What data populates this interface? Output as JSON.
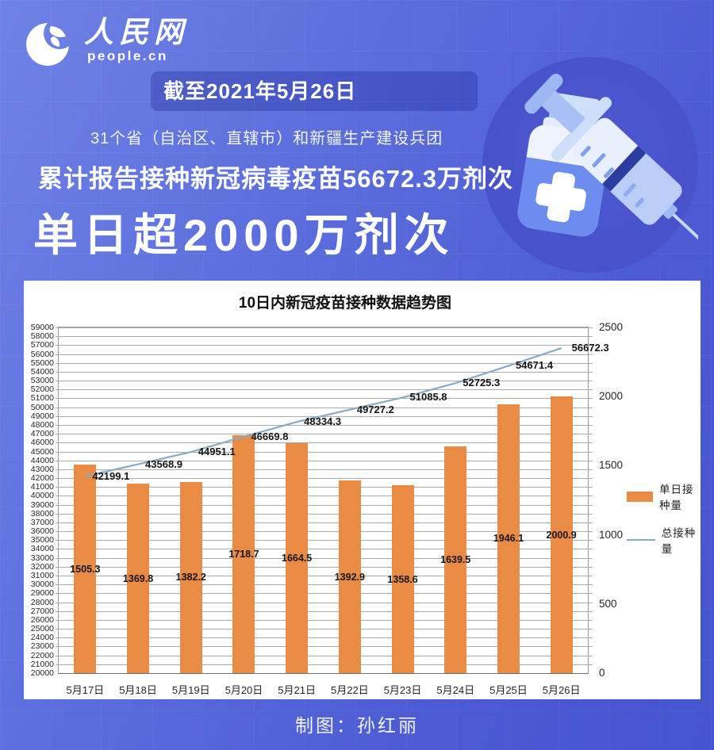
{
  "logo": {
    "name_cn": "人民网",
    "domain": "people.cn"
  },
  "banner": {
    "date_line": "截至2021年5月26日",
    "scope_line": "31个省（自治区、直辖市）和新疆生产建设兵团",
    "total_line": "累计报告接种新冠病毒疫苗56672.3万剂次",
    "headline": "单日超2000万剂次"
  },
  "chart_data": {
    "type": "bar",
    "title": "10日内新冠疫苗接种数据趋势图",
    "categories": [
      "5月17日",
      "5月18日",
      "5月19日",
      "5月20日",
      "5月21日",
      "5月22日",
      "5月23日",
      "5月24日",
      "5月25日",
      "5月26日"
    ],
    "series": [
      {
        "name": "单日接种量",
        "type": "bar",
        "axis": "right",
        "color": "#E98A45",
        "values": [
          1505.3,
          1369.8,
          1382.2,
          1718.7,
          1664.5,
          1392.9,
          1358.6,
          1639.5,
          1946.1,
          2000.9
        ]
      },
      {
        "name": "总接种量",
        "type": "line",
        "axis": "left",
        "color": "#8AAAC2",
        "values": [
          42199.1,
          43568.9,
          44951.1,
          46669.8,
          48334.3,
          49727.2,
          51085.8,
          52725.3,
          54671.4,
          56672.3
        ]
      }
    ],
    "left_axis": {
      "min": 20000,
      "max": 59000,
      "step": 1000
    },
    "right_axis": {
      "min": 0,
      "max": 2500,
      "step": 500
    },
    "grid": true,
    "legend_position": "right"
  },
  "footer": {
    "credit": "制图：孙红丽"
  },
  "colors": {
    "background": "#5b6ddc",
    "panel": "#ffffff",
    "bar": "#E98A45",
    "line": "#8AAAC2"
  }
}
